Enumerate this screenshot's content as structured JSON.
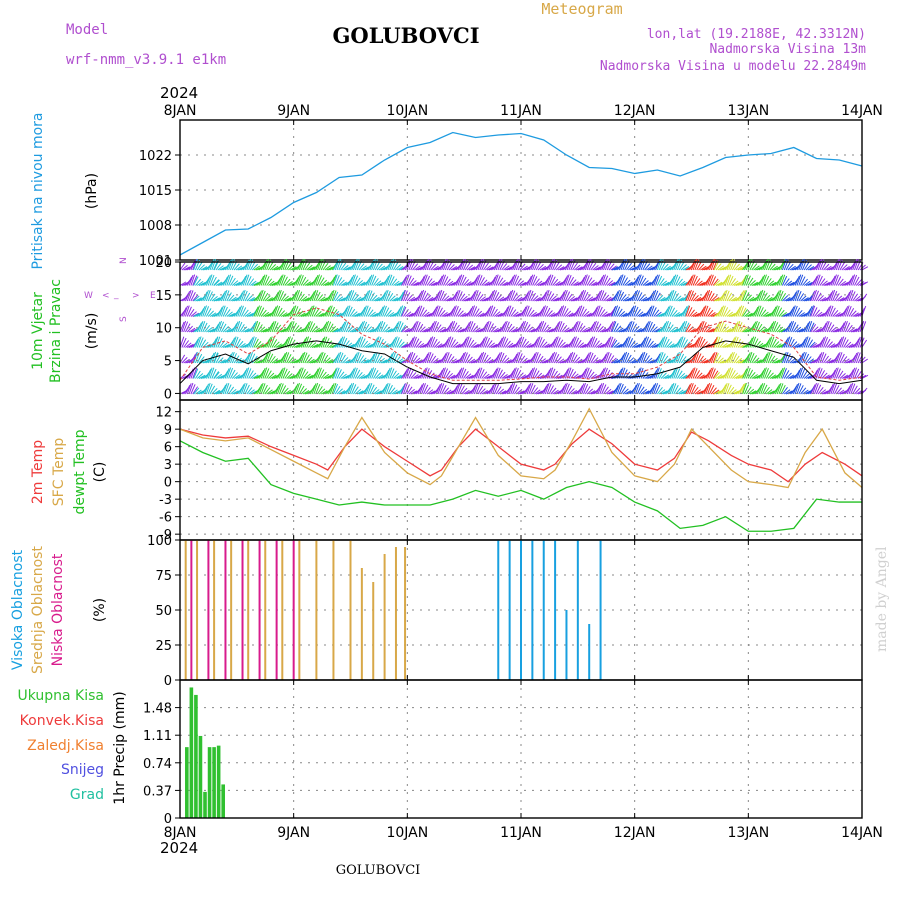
{
  "header": {
    "model_label": "Model",
    "model_value": "wrf-nmm_v3.9.1 e1km",
    "station": "GOLUBOVCI",
    "meteogram": "Meteogram",
    "lonlat": "lon,lat (19.2188E, 42.3312N)",
    "elevation": "Nadmorska Visina 13m",
    "model_elevation": "Nadmorska Visina u modelu 22.2849m",
    "year": "2024",
    "footer_station": "GOLUBOVCI",
    "credit": "made by Angel"
  },
  "colors": {
    "pressure": "#1e9be0",
    "t2m": "#ee3b3b",
    "sfc": "#d8a848",
    "dew": "#22c022",
    "cloud_high": "#18a0e0",
    "cloud_mid": "#d8a848",
    "cloud_low": "#d81b8c",
    "precip": "#30c030",
    "wind_purple": "#8a2be2",
    "wind_blue": "#2050e0",
    "wind_cyan": "#20c0d0",
    "wind_green": "#30d030",
    "wind_yellow": "#d0e030",
    "wind_red": "#f03020"
  },
  "chart_data": [
    {
      "type": "line",
      "title": "Pritisak na nivou mora",
      "ylabel": "(hPa)",
      "ylim": [
        1001,
        1029
      ],
      "yticks": [
        "1001",
        "1008",
        "1015",
        "1022"
      ],
      "x_ticks": [
        "8JAN",
        "9JAN",
        "10JAN",
        "11JAN",
        "12JAN",
        "13JAN",
        "14JAN"
      ],
      "grid": true,
      "series": [
        {
          "name": "Pritisak na nivou mora",
          "x": [
            0,
            0.2,
            0.4,
            0.6,
            0.8,
            1.0,
            1.2,
            1.4,
            1.6,
            1.8,
            2.0,
            2.2,
            2.4,
            2.6,
            2.8,
            3.0,
            3.2,
            3.4,
            3.6,
            3.8,
            4.0,
            4.2,
            4.4,
            4.6,
            4.8,
            5.0,
            5.2,
            5.4,
            5.6,
            5.8,
            6.0
          ],
          "values": [
            1002,
            1004.5,
            1007,
            1007.2,
            1009.5,
            1012.5,
            1014.5,
            1017.5,
            1018,
            1021,
            1023.5,
            1024.5,
            1026.5,
            1025.5,
            1026,
            1026.3,
            1025,
            1022,
            1019.5,
            1019.3,
            1018.3,
            1019,
            1017.8,
            1019.5,
            1021.5,
            1022,
            1022.3,
            1023.5,
            1021.3,
            1021,
            1019.8
          ]
        }
      ]
    },
    {
      "type": "line",
      "title": "10m Vjetar Brzina i Pravac",
      "ylabel": "(m/s)",
      "ylim": [
        -1,
        20
      ],
      "yticks": [
        "0",
        "5",
        "10",
        "15",
        "20"
      ],
      "x_ticks": [
        "8JAN",
        "9JAN",
        "10JAN",
        "11JAN",
        "12JAN",
        "13JAN",
        "14JAN"
      ],
      "compass": [
        "N",
        "S",
        "W",
        "E",
        "<",
        ">",
        "_"
      ],
      "grid": true,
      "series": [
        {
          "name": "wind_speed",
          "x": [
            0,
            0.2,
            0.4,
            0.6,
            0.8,
            1.0,
            1.2,
            1.4,
            1.6,
            1.8,
            2.0,
            2.2,
            2.4,
            2.6,
            2.8,
            3.0,
            3.2,
            3.4,
            3.6,
            3.8,
            4.0,
            4.2,
            4.4,
            4.6,
            4.8,
            5.0,
            5.2,
            5.4,
            5.6,
            5.8,
            6.0
          ],
          "values": [
            1.5,
            5,
            6,
            4.5,
            6.5,
            7.5,
            8,
            7.5,
            6.5,
            6,
            4,
            2.5,
            1.5,
            1.5,
            1.5,
            1.8,
            1.8,
            2,
            1.8,
            2.5,
            2.5,
            3,
            4,
            7,
            8,
            7.5,
            6.5,
            5.5,
            2,
            1.5,
            2
          ]
        },
        {
          "name": "wind_gust",
          "x": [
            0,
            0.2,
            0.4,
            0.6,
            0.8,
            1.0,
            1.2,
            1.4,
            1.6,
            1.8,
            2.0,
            2.2,
            2.4,
            2.6,
            2.8,
            3.0,
            3.2,
            3.4,
            3.6,
            3.8,
            4.0,
            4.2,
            4.4,
            4.6,
            4.8,
            5.0,
            5.2,
            5.4,
            5.6,
            5.8,
            6.0
          ],
          "values": [
            2,
            7,
            8,
            6,
            8,
            12,
            13,
            12,
            9,
            7.5,
            5,
            3,
            2,
            2,
            2,
            2.2,
            2.5,
            2.5,
            2.2,
            3,
            3,
            4,
            6,
            10,
            11,
            10,
            9,
            7,
            2.5,
            2,
            2.5
          ]
        }
      ]
    },
    {
      "type": "line",
      "title": "2m Temp SFC Temp dewpt Temp",
      "ylabel": "(C)",
      "ylim": [
        -10,
        14
      ],
      "yticks": [
        "-9",
        "-6",
        "-3",
        "0",
        "3",
        "6",
        "9",
        "12"
      ],
      "x_ticks": [
        "8JAN",
        "9JAN",
        "10JAN",
        "11JAN",
        "12JAN",
        "13JAN",
        "14JAN"
      ],
      "grid": true,
      "series": [
        {
          "name": "2m Temp",
          "x": [
            0,
            0.2,
            0.4,
            0.6,
            0.8,
            1.0,
            1.2,
            1.3,
            1.45,
            1.6,
            1.8,
            2.0,
            2.2,
            2.3,
            2.45,
            2.6,
            2.8,
            3.0,
            3.2,
            3.3,
            3.45,
            3.6,
            3.8,
            4.0,
            4.2,
            4.35,
            4.5,
            4.65,
            4.85,
            5.0,
            5.2,
            5.35,
            5.5,
            5.65,
            5.85,
            6.0
          ],
          "values": [
            9,
            8,
            7.5,
            7.8,
            6,
            4.5,
            3,
            2,
            6,
            9,
            6,
            3.5,
            1,
            2,
            6,
            9,
            6,
            3,
            2,
            3,
            6.5,
            9,
            6.5,
            3,
            2,
            4,
            8.5,
            7,
            4.5,
            3,
            2,
            0,
            3,
            5,
            3,
            1
          ]
        },
        {
          "name": "SFC Temp",
          "x": [
            0,
            0.2,
            0.4,
            0.6,
            0.8,
            1.0,
            1.2,
            1.3,
            1.45,
            1.6,
            1.8,
            2.0,
            2.2,
            2.3,
            2.45,
            2.6,
            2.8,
            3.0,
            3.2,
            3.3,
            3.45,
            3.6,
            3.8,
            4.0,
            4.2,
            4.35,
            4.5,
            4.65,
            4.85,
            5.0,
            5.2,
            5.35,
            5.5,
            5.65,
            5.85,
            6.0
          ],
          "values": [
            9,
            7.5,
            7,
            7.5,
            5.5,
            3.5,
            1.5,
            0.5,
            6,
            11,
            5,
            1.5,
            -0.5,
            1,
            6,
            11,
            4.5,
            1,
            0.5,
            2,
            7,
            12.5,
            5,
            1,
            0,
            3,
            9,
            6,
            2,
            0,
            -0.5,
            -1,
            5,
            9,
            1.5,
            -1
          ]
        },
        {
          "name": "dewpt Temp",
          "x": [
            0,
            0.2,
            0.4,
            0.6,
            0.8,
            1.0,
            1.2,
            1.4,
            1.6,
            1.8,
            2.0,
            2.2,
            2.4,
            2.6,
            2.8,
            3.0,
            3.2,
            3.4,
            3.6,
            3.8,
            4.0,
            4.2,
            4.4,
            4.6,
            4.8,
            5.0,
            5.2,
            5.4,
            5.6,
            5.8,
            6.0
          ],
          "values": [
            7,
            5,
            3.5,
            4,
            -0.5,
            -2,
            -3,
            -4,
            -3.5,
            -4,
            -4,
            -4,
            -3,
            -1.5,
            -2.5,
            -1.5,
            -3,
            -1,
            0,
            -1,
            -3.5,
            -5,
            -8,
            -7.5,
            -6,
            -8.5,
            -8.5,
            -8,
            -3,
            -3.5,
            -3.5
          ]
        }
      ]
    },
    {
      "type": "bar",
      "title": "Visoka Oblacnost Srednja Oblacnost Niska Oblacnost",
      "ylabel": "(%)",
      "ylim": [
        0,
        100
      ],
      "yticks": [
        "0",
        "25",
        "50",
        "75",
        "100"
      ],
      "x_ticks": [
        "8JAN",
        "9JAN",
        "10JAN",
        "11JAN",
        "12JAN",
        "13JAN",
        "14JAN"
      ],
      "grid": true,
      "series": [
        {
          "name": "Srednja Oblacnost",
          "x": [
            0.05,
            0.15,
            0.3,
            0.45,
            0.6,
            0.75,
            0.9,
            1.05,
            1.2,
            1.35,
            1.5,
            1.6,
            1.7,
            1.8,
            1.9,
            1.98
          ],
          "values": [
            100,
            100,
            100,
            100,
            100,
            100,
            100,
            100,
            100,
            100,
            100,
            80,
            70,
            90,
            95,
            95
          ]
        },
        {
          "name": "Visoka Oblacnost",
          "x": [
            2.8,
            2.9,
            3.0,
            3.1,
            3.2,
            3.3,
            3.4,
            3.5,
            3.6,
            3.7
          ],
          "values": [
            100,
            100,
            100,
            100,
            100,
            100,
            50,
            100,
            40,
            100
          ]
        },
        {
          "name": "Niska Oblacnost",
          "x": [
            0.1,
            0.25,
            0.4,
            0.55,
            0.7,
            0.85,
            1.0
          ],
          "values": [
            100,
            100,
            100,
            100,
            100,
            100,
            100
          ]
        }
      ]
    },
    {
      "type": "bar",
      "title": "Ukupna Kisa Konvek.Kisa Zaledj.Kisa Snijeg Grad",
      "ylabel": "1hr Precip (mm)",
      "ylim": [
        0,
        1.85
      ],
      "yticks": [
        "0",
        "0.37",
        "0.74",
        "1.11",
        "1.48"
      ],
      "x_ticks": [
        "8JAN",
        "9JAN",
        "10JAN",
        "11JAN",
        "12JAN",
        "13JAN",
        "14JAN"
      ],
      "grid": true,
      "series": [
        {
          "name": "Ukupna Kisa",
          "x": [
            0.06,
            0.1,
            0.14,
            0.18,
            0.22,
            0.26,
            0.3,
            0.34,
            0.38
          ],
          "values": [
            0.95,
            1.75,
            1.65,
            1.1,
            0.35,
            0.95,
            0.95,
            0.97,
            0.45
          ]
        }
      ]
    }
  ]
}
